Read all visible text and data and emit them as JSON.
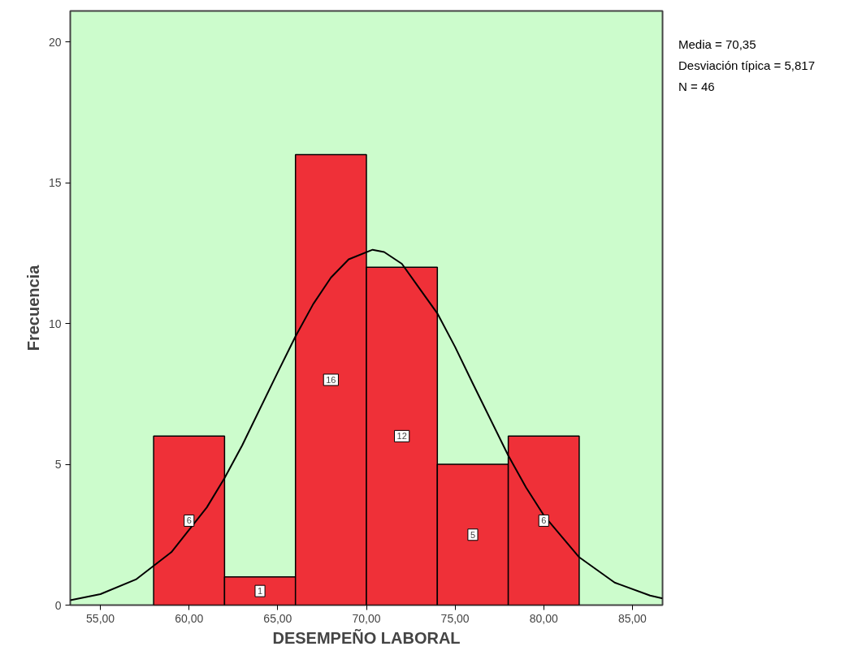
{
  "chart_data": {
    "type": "histogram",
    "xlabel": "DESEMPEÑO LABORAL",
    "ylabel": "Frecuencia",
    "bins": [
      58,
      62,
      66,
      70,
      74,
      78,
      82
    ],
    "values": [
      6,
      1,
      16,
      12,
      5,
      6
    ],
    "color": "#ef3038",
    "value_labels": [
      "6",
      "1",
      "16",
      "12",
      "5",
      "6"
    ],
    "series": [
      {
        "type": "line",
        "color": "#000000",
        "x": [
          53.3,
          55,
          57,
          59,
          61,
          62,
          63,
          65,
          66,
          67,
          68,
          69,
          70.35,
          71,
          72,
          74,
          75,
          76,
          78,
          79,
          80,
          82,
          84,
          86,
          86.7
        ],
        "values": [
          0.17,
          0.39,
          0.91,
          1.88,
          3.47,
          4.51,
          5.68,
          8.27,
          9.54,
          10.69,
          11.63,
          12.28,
          12.62,
          12.54,
          12.12,
          10.36,
          9.17,
          7.87,
          5.31,
          4.18,
          3.19,
          1.7,
          0.8,
          0.34,
          0.24
        ]
      }
    ],
    "xlim": [
      53.3,
      86.7
    ],
    "ylim": [
      0,
      21.1
    ],
    "xticks": [
      {
        "value": 55,
        "label": "55,00"
      },
      {
        "value": 60,
        "label": "60,00"
      },
      {
        "value": 65,
        "label": "65,00"
      },
      {
        "value": 70,
        "label": "70,00"
      },
      {
        "value": 75,
        "label": "75,00"
      },
      {
        "value": 80,
        "label": "80,00"
      },
      {
        "value": 85,
        "label": "85,00"
      }
    ],
    "yticks": [
      0,
      5,
      10,
      15,
      20
    ],
    "annotations": [
      "Media = 70,35",
      "Desviación típica = 5,817",
      "N = 46"
    ],
    "grid": false
  }
}
